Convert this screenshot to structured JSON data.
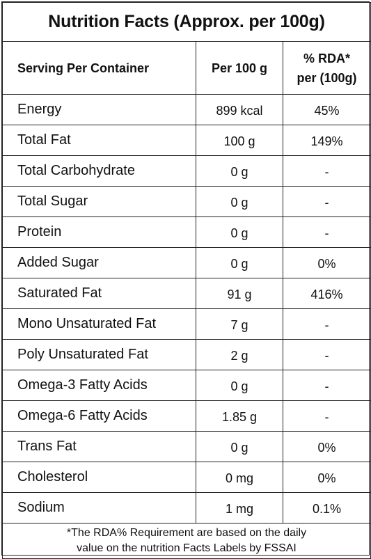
{
  "title": "Nutrition Facts (Approx. per 100g)",
  "columns": {
    "c1": "Serving Per Container",
    "c2": "Per 100 g",
    "c3_line1": "% RDA*",
    "c3_line2": "per (100g)"
  },
  "rows": [
    {
      "name": "Energy",
      "amount": "899 kcal",
      "rda": "45%"
    },
    {
      "name": "Total Fat",
      "amount": "100 g",
      "rda": "149%"
    },
    {
      "name": "Total Carbohydrate",
      "amount": "0 g",
      "rda": "-"
    },
    {
      "name": "Total Sugar",
      "amount": "0 g",
      "rda": "-"
    },
    {
      "name": "Protein",
      "amount": "0 g",
      "rda": "-"
    },
    {
      "name": "Added Sugar",
      "amount": "0 g",
      "rda": "0%"
    },
    {
      "name": "Saturated Fat",
      "amount": "91 g",
      "rda": "416%"
    },
    {
      "name": "Mono Unsaturated Fat",
      "amount": "7 g",
      "rda": "-"
    },
    {
      "name": "Poly Unsaturated Fat",
      "amount": "2 g",
      "rda": "-"
    },
    {
      "name": "Omega-3 Fatty Acids",
      "amount": "0 g",
      "rda": "-"
    },
    {
      "name": "Omega-6 Fatty Acids",
      "amount": "1.85 g",
      "rda": "-"
    },
    {
      "name": "Trans Fat",
      "amount": "0 g",
      "rda": "0%"
    },
    {
      "name": "Cholesterol",
      "amount": "0 mg",
      "rda": "0%"
    },
    {
      "name": "Sodium",
      "amount": "1 mg",
      "rda": "0.1%"
    }
  ],
  "footnote": {
    "line1": "*The RDA% Requirement are based on the daily",
    "line2": "value on the nutrition Facts Labels by FSSAI"
  }
}
